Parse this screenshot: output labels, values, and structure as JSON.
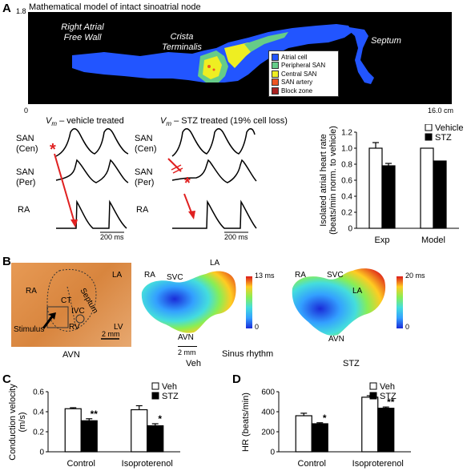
{
  "panelA": {
    "letter": "A",
    "title": "Mathematical model of intact sinoatrial node",
    "yaxis_top": "1.8",
    "xaxis_start": "0",
    "xaxis_end": "16.0 cm",
    "labels": {
      "raf_line1": "Right Atrial",
      "raf_line2": "Free Wall",
      "crista_line1": "Crista",
      "crista_line2": "Terminalis",
      "septum": "Septum"
    },
    "legend": [
      {
        "label": "Atrial cell",
        "color": "#2255ff"
      },
      {
        "label": "Peripheral SAN",
        "color": "#66cc88"
      },
      {
        "label": "Central SAN",
        "color": "#eeee22"
      },
      {
        "label": "SAN artery",
        "color": "#ee5522"
      },
      {
        "label": "Block zone",
        "color": "#aa2222"
      }
    ],
    "traces": {
      "vehicle_title_vm": "V",
      "vehicle_title_sub": "m",
      "vehicle_title_rest": " – vehicle treated",
      "stz_title_rest": " – STZ treated (19% cell loss)",
      "row_san_cen_1": "SAN",
      "row_san_cen_2": "(Cen)",
      "row_san_per_1": "SAN",
      "row_san_per_2": "(Per)",
      "row_ra": "RA",
      "scale": "200 ms",
      "asterisk": "*"
    },
    "chart": {
      "ylabel_line1": "Isolated atrial heart rate",
      "ylabel_line2": "(beats/min norm. to vehicle)",
      "yticks": [
        "0",
        "0.2",
        "0.4",
        "0.6",
        "0.8",
        "1.0",
        "1.2"
      ],
      "categories": [
        "Exp",
        "Model"
      ],
      "legend": [
        "Vehicle",
        "STZ"
      ]
    }
  },
  "panelB": {
    "letter": "B",
    "photo_labels": {
      "ra": "RA",
      "ct": "CT",
      "septum": "Septum",
      "ivc": "IVC",
      "la": "LA",
      "lv": "LV",
      "rv": "RV",
      "stimulus": "Stimulus",
      "scale": "2 mm",
      "avn": "AVN"
    },
    "veh_map": {
      "ra": "RA",
      "svc": "SVC",
      "la": "LA",
      "avn": "AVN",
      "scale": "2 mm",
      "caption": "Veh",
      "bar_top": "13 ms",
      "bar_bottom": "0"
    },
    "stz_map": {
      "ra": "RA",
      "svc": "SVC",
      "la": "LA",
      "avn": "AVN",
      "caption": "STZ",
      "bar_top": "20 ms",
      "bar_bottom": "0"
    },
    "sinus_caption": "Sinus rhythm"
  },
  "panelC": {
    "letter": "C",
    "ylabel": "Conduction velocity",
    "yunit": "(m/s)",
    "yticks": [
      "0",
      "0.2",
      "0.4",
      "0.6"
    ],
    "categories": [
      "Control",
      "Isoproterenol"
    ],
    "legend": [
      "Veh",
      "STZ"
    ],
    "sig": [
      "**",
      "*"
    ]
  },
  "panelD": {
    "letter": "D",
    "ylabel": "HR (beats/min)",
    "yticks": [
      "0",
      "200",
      "400",
      "600"
    ],
    "categories": [
      "Control",
      "Isoproterenol"
    ],
    "legend": [
      "Veh",
      "STZ"
    ],
    "sig": [
      "*",
      "**"
    ]
  },
  "chart_data": [
    {
      "type": "bar",
      "categories": [
        "Exp",
        "Model"
      ],
      "series": [
        {
          "name": "Vehicle",
          "values": [
            1.0,
            1.0
          ],
          "errors": [
            0.07,
            0
          ]
        },
        {
          "name": "STZ",
          "values": [
            0.78,
            0.84
          ],
          "errors": [
            0.03,
            0
          ]
        }
      ],
      "ylabel": "Isolated atrial heart rate (beats/min norm. to vehicle)",
      "ylim": [
        0,
        1.2
      ]
    },
    {
      "type": "bar",
      "categories": [
        "Control",
        "Isoproterenol"
      ],
      "series": [
        {
          "name": "Veh",
          "values": [
            0.43,
            0.42
          ],
          "errors": [
            0.01,
            0.04
          ]
        },
        {
          "name": "STZ",
          "values": [
            0.31,
            0.26
          ],
          "errors": [
            0.02,
            0.02
          ]
        }
      ],
      "ylabel": "Conduction velocity (m/s)",
      "ylim": [
        0,
        0.6
      ]
    },
    {
      "type": "bar",
      "categories": [
        "Control",
        "Isoproterenol"
      ],
      "series": [
        {
          "name": "Veh",
          "values": [
            360,
            545
          ],
          "errors": [
            25,
            15
          ]
        },
        {
          "name": "STZ",
          "values": [
            280,
            435
          ],
          "errors": [
            10,
            12
          ]
        }
      ],
      "ylabel": "HR (beats/min)",
      "ylim": [
        0,
        600
      ]
    }
  ]
}
